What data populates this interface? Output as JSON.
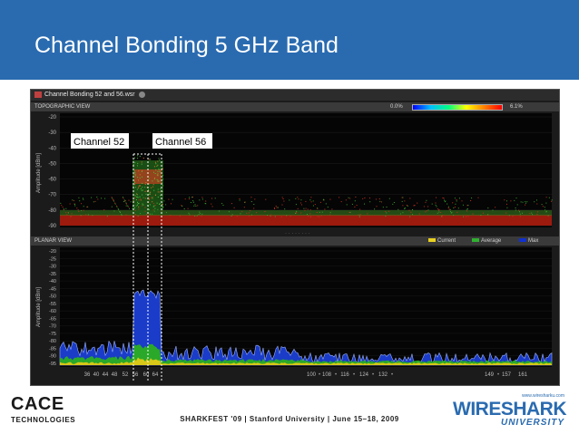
{
  "slide": {
    "title": "Channel Bonding 5 GHz Band",
    "footer": "SHARKFEST '09  |  Stanford University  |  June 15–18, 2009"
  },
  "window": {
    "filename": "Channel Bonding 52 and 56.wsr"
  },
  "topographic": {
    "header": "TOPOGRAPHIC VIEW",
    "scale_min": "0.0%",
    "scale_max": "6.1%",
    "ylabel": "Amplitude [dBm]",
    "yticks": [
      "-20",
      "-30",
      "-40",
      "-50",
      "-60",
      "-70",
      "-80",
      "-90"
    ],
    "ytick_values": [
      -20,
      -30,
      -40,
      -50,
      -60,
      -70,
      -80,
      -90
    ],
    "annotations": [
      "Channel 52",
      "Channel 56"
    ]
  },
  "planar": {
    "header": "PLANAR VIEW",
    "ylabel": "Amplitude [dBm]",
    "yticks": [
      "-20",
      "-25",
      "-30",
      "-35",
      "-40",
      "-45",
      "-50",
      "-55",
      "-60",
      "-65",
      "-70",
      "-75",
      "-80",
      "-85",
      "-90",
      "-95"
    ],
    "ytick_values": [
      -20,
      -25,
      -30,
      -35,
      -40,
      -45,
      -50,
      -55,
      -60,
      -65,
      -70,
      -75,
      -80,
      -85,
      -90,
      -95
    ],
    "legend": [
      {
        "name": "Current",
        "color": "#e8d020"
      },
      {
        "name": "Average",
        "color": "#30b030"
      },
      {
        "name": "Max",
        "color": "#1030d0"
      }
    ]
  },
  "channel_axis": {
    "labels": [
      "36",
      "40",
      "44",
      "48",
      "52",
      "56",
      "60",
      "64",
      "100",
      "108",
      "116",
      "124",
      "132",
      "149",
      "157",
      "161"
    ],
    "channels": [
      36,
      40,
      44,
      48,
      52,
      56,
      60,
      64,
      100,
      108,
      116,
      124,
      132,
      149,
      157,
      161
    ],
    "separators": [
      "•",
      "•",
      "•",
      "•",
      "•",
      "•"
    ]
  },
  "logos": {
    "cace_word": "CACE",
    "cace_sub": "TECHNOLOGIES",
    "ws_url": "www.wiresharku.com",
    "ws_word": "WIRESHARK",
    "ws_uni": "UNIVERSITY"
  }
}
